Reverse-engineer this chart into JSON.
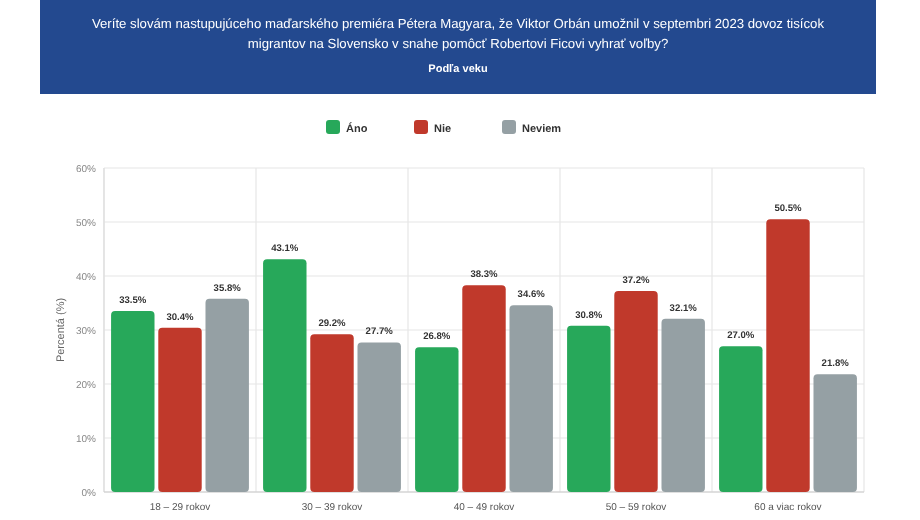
{
  "chart_data": {
    "type": "bar",
    "title": "Veríte slovám nastupujúceho maďarského premiéra Pétera Magyara, že Viktor Orbán umožnil v septembri 2023 dovoz tisícok migrantov na Slovensko v snahe pomôcť Robertovi Ficovi vyhrať voľby?",
    "subtitle": "Podľa veku",
    "ylabel": "Percentá (%)",
    "categories": [
      "18 – 29 rokov",
      "30 – 39 rokov",
      "40 – 49 rokov",
      "50 – 59 rokov",
      "60 a viac rokov"
    ],
    "series": [
      {
        "name": "Áno",
        "color": "#27a85a",
        "values": [
          33.5,
          43.1,
          26.8,
          30.8,
          27.0
        ],
        "value_labels": [
          "33.5%",
          "43.1%",
          "26.8%",
          "30.8%",
          "27.0%"
        ]
      },
      {
        "name": "Nie",
        "color": "#c0392b",
        "values": [
          30.4,
          29.2,
          38.3,
          37.2,
          50.5
        ],
        "value_labels": [
          "30.4%",
          "29.2%",
          "38.3%",
          "37.2%",
          "50.5%"
        ]
      },
      {
        "name": "Neviem",
        "color": "#95a0a4",
        "values": [
          35.8,
          27.7,
          34.6,
          32.1,
          21.8
        ],
        "value_labels": [
          "35.8%",
          "27.7%",
          "34.6%",
          "32.1%",
          "21.8%"
        ]
      }
    ],
    "ylim": [
      0,
      60
    ],
    "yticks": [
      {
        "value": 0,
        "label": "0%"
      },
      {
        "value": 10,
        "label": "10%"
      },
      {
        "value": 20,
        "label": "20%"
      },
      {
        "value": 30,
        "label": "30%"
      },
      {
        "value": 40,
        "label": "40%"
      },
      {
        "value": 50,
        "label": "50%"
      },
      {
        "value": 60,
        "label": "60%"
      }
    ],
    "grid": true,
    "legend": "top"
  }
}
